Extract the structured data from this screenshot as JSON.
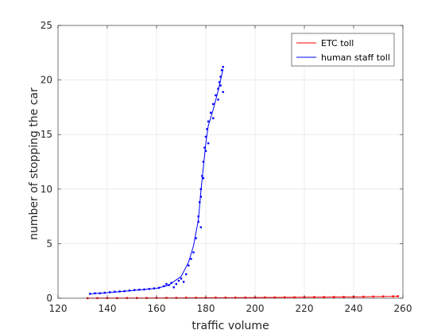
{
  "chart_data": {
    "type": "scatter",
    "xlabel": "traffic volume",
    "ylabel": "number of stopping the car",
    "xlim": [
      120,
      260
    ],
    "ylim": [
      0,
      25
    ],
    "xticks": [
      "120",
      "140",
      "160",
      "180",
      "200",
      "220",
      "240",
      "260"
    ],
    "yticks": [
      "0",
      "5",
      "10",
      "15",
      "20",
      "25"
    ],
    "grid": true,
    "legend_position": "top-right",
    "series": [
      {
        "name": "ETC toll",
        "color": "#ff0000",
        "points": [
          [
            132,
            0.0
          ],
          [
            136,
            0.01
          ],
          [
            140,
            0.01
          ],
          [
            144,
            0.01
          ],
          [
            148,
            0.02
          ],
          [
            152,
            0.02
          ],
          [
            156,
            0.02
          ],
          [
            160,
            0.03
          ],
          [
            164,
            0.03
          ],
          [
            168,
            0.03
          ],
          [
            172,
            0.04
          ],
          [
            176,
            0.04
          ],
          [
            180,
            0.04
          ],
          [
            184,
            0.05
          ],
          [
            188,
            0.05
          ],
          [
            192,
            0.05
          ],
          [
            196,
            0.06
          ],
          [
            200,
            0.06
          ],
          [
            204,
            0.07
          ],
          [
            208,
            0.07
          ],
          [
            212,
            0.08
          ],
          [
            216,
            0.08
          ],
          [
            220,
            0.09
          ],
          [
            224,
            0.1
          ],
          [
            228,
            0.1
          ],
          [
            232,
            0.11
          ],
          [
            236,
            0.12
          ],
          [
            240,
            0.13
          ],
          [
            244,
            0.14
          ],
          [
            248,
            0.15
          ],
          [
            252,
            0.16
          ],
          [
            256,
            0.17
          ],
          [
            258,
            0.18
          ]
        ],
        "line": [
          [
            132,
            0.0
          ],
          [
            140,
            0.01
          ],
          [
            160,
            0.02
          ],
          [
            180,
            0.04
          ],
          [
            200,
            0.06
          ],
          [
            220,
            0.09
          ],
          [
            240,
            0.12
          ],
          [
            258,
            0.17
          ]
        ]
      },
      {
        "name": "human staff toll",
        "color": "#0000ff",
        "points": [
          [
            133,
            0.4
          ],
          [
            135,
            0.45
          ],
          [
            137,
            0.45
          ],
          [
            139,
            0.5
          ],
          [
            141,
            0.55
          ],
          [
            143,
            0.6
          ],
          [
            145,
            0.62
          ],
          [
            147,
            0.65
          ],
          [
            149,
            0.7
          ],
          [
            151,
            0.75
          ],
          [
            153,
            0.78
          ],
          [
            155,
            0.8
          ],
          [
            157,
            0.85
          ],
          [
            159,
            0.9
          ],
          [
            161,
            0.95
          ],
          [
            163,
            1.1
          ],
          [
            164,
            1.3
          ],
          [
            165,
            1.2
          ],
          [
            166,
            1.4
          ],
          [
            167,
            1.0
          ],
          [
            168,
            1.3
          ],
          [
            169,
            1.6
          ],
          [
            170,
            1.8
          ],
          [
            171,
            1.5
          ],
          [
            172,
            2.2
          ],
          [
            173,
            3.0
          ],
          [
            174,
            3.6
          ],
          [
            175,
            4.2
          ],
          [
            176,
            5.5
          ],
          [
            177,
            7.0
          ],
          [
            177.5,
            8.8
          ],
          [
            178,
            10.0
          ],
          [
            178.5,
            11.2
          ],
          [
            179,
            12.5
          ],
          [
            179.5,
            13.8
          ],
          [
            180,
            14.8
          ],
          [
            180.5,
            15.5
          ],
          [
            181,
            16.2
          ],
          [
            182,
            17.0
          ],
          [
            183,
            17.8
          ],
          [
            184,
            18.6
          ],
          [
            185,
            19.2
          ],
          [
            185.5,
            19.8
          ],
          [
            186,
            20.3
          ],
          [
            186.5,
            20.9
          ],
          [
            187,
            21.2
          ],
          [
            186,
            19.5
          ],
          [
            187,
            18.9
          ],
          [
            185,
            18.2
          ],
          [
            178,
            6.5
          ],
          [
            177,
            7.5
          ],
          [
            178,
            9.3
          ],
          [
            179,
            11.0
          ],
          [
            180,
            13.5
          ],
          [
            181,
            14.2
          ],
          [
            183,
            16.5
          ]
        ],
        "line": [
          [
            133,
            0.4
          ],
          [
            140,
            0.5
          ],
          [
            150,
            0.7
          ],
          [
            160,
            0.9
          ],
          [
            165,
            1.2
          ],
          [
            170,
            2.0
          ],
          [
            173,
            3.3
          ],
          [
            175,
            4.8
          ],
          [
            177,
            7.2
          ],
          [
            178,
            9.8
          ],
          [
            179,
            12.0
          ],
          [
            180,
            14.2
          ],
          [
            181,
            15.8
          ],
          [
            183,
            17.3
          ],
          [
            185,
            19.0
          ],
          [
            186,
            20.0
          ],
          [
            187,
            21.0
          ]
        ]
      }
    ]
  }
}
